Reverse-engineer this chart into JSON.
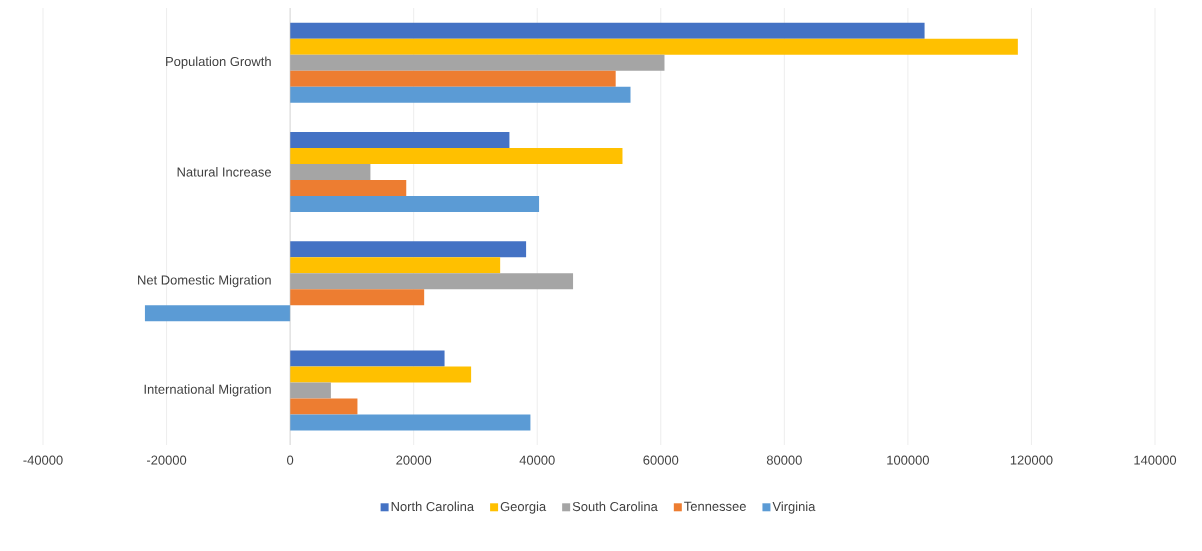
{
  "chart_data": {
    "type": "bar",
    "orientation": "horizontal",
    "categories": [
      "Population Growth",
      "Natural Increase",
      "Net Domestic Migration",
      "International Migration"
    ],
    "series": [
      {
        "name": "North Carolina",
        "color": "#4472c4",
        "values": [
          102700,
          35500,
          38200,
          25000
        ]
      },
      {
        "name": "Georgia",
        "color": "#ffc000",
        "values": [
          117800,
          53800,
          34000,
          29300
        ]
      },
      {
        "name": "South Carolina",
        "color": "#a5a5a5",
        "values": [
          60600,
          13000,
          45800,
          6600
        ]
      },
      {
        "name": "Tennessee",
        "color": "#ed7d31",
        "values": [
          52700,
          18800,
          21700,
          10900
        ]
      },
      {
        "name": "Virginia",
        "color": "#5b9bd5",
        "values": [
          55100,
          40300,
          -23500,
          38900
        ]
      }
    ],
    "xlim": [
      -40000,
      140000
    ],
    "xticks": [
      -40000,
      -20000,
      0,
      20000,
      40000,
      60000,
      80000,
      100000,
      120000,
      140000
    ],
    "grid": "x",
    "legend": "bottom"
  }
}
